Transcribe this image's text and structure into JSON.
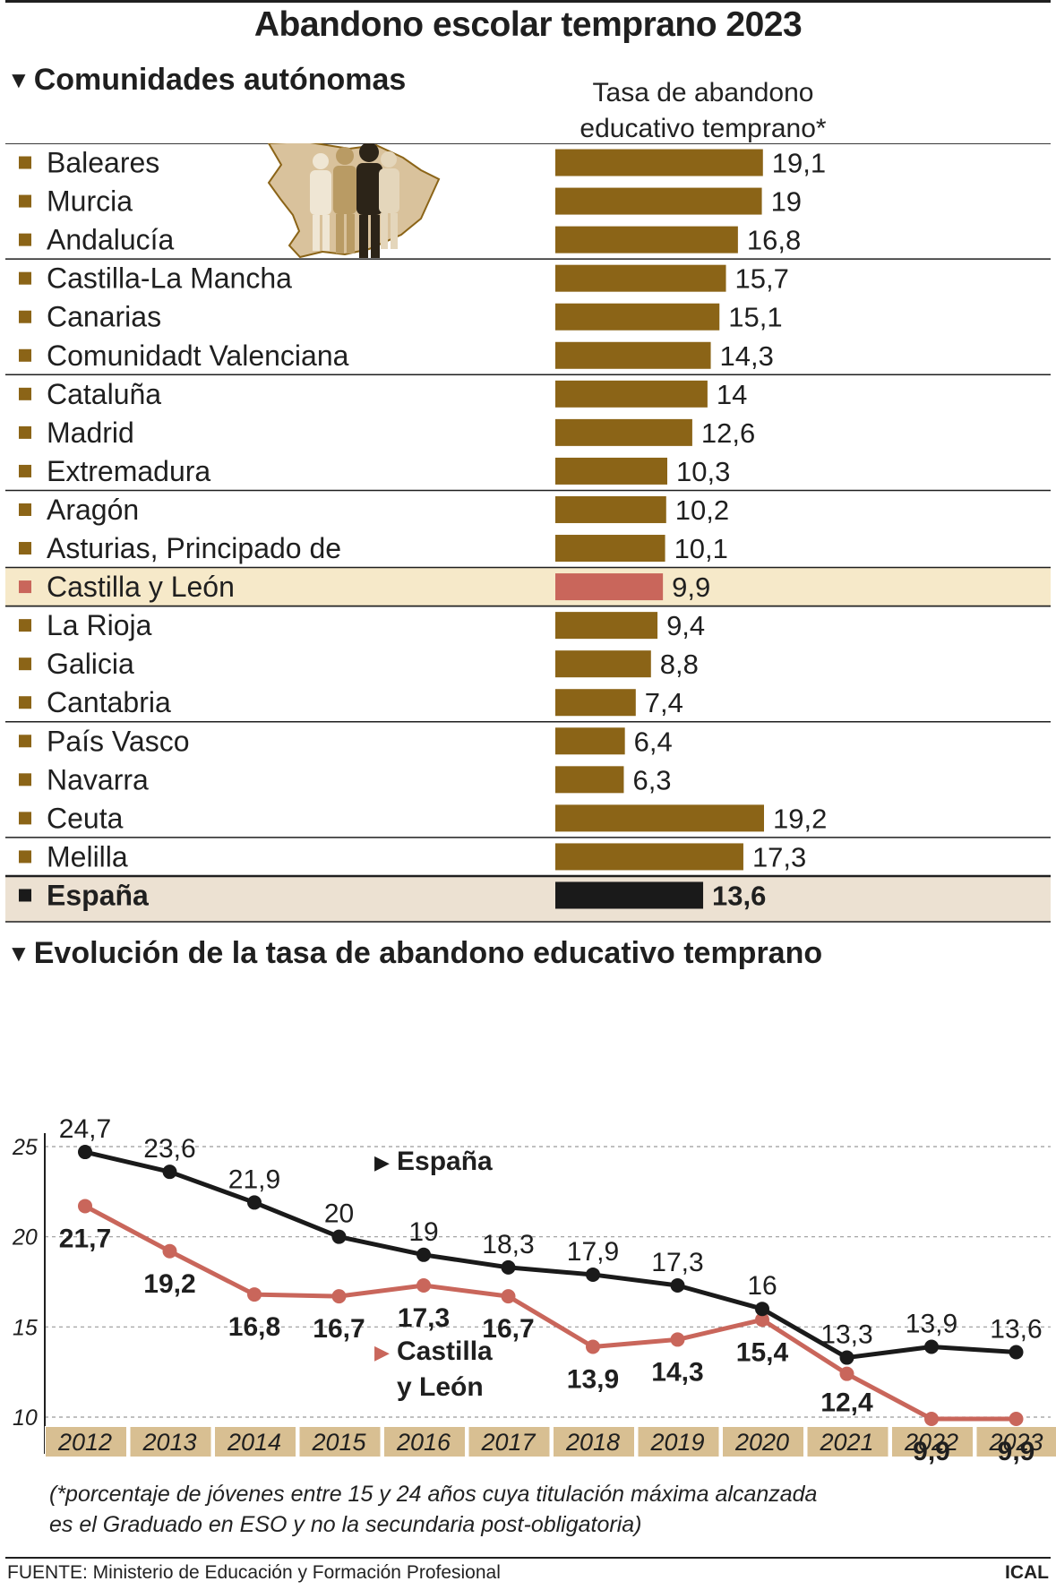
{
  "header": {
    "title": "Abandono escolar temprano 2023",
    "section1": "Comunidades autónomas",
    "rate_label_line1": "Tasa de abandono",
    "rate_label_line2": "educativo temprano*",
    "section2": "Evolución de la tasa de abandono educativo temprano"
  },
  "colors": {
    "bar": "#8b6417",
    "highlight_bar": "#c9665b",
    "total_bar": "#1a1a1a",
    "highlight_bg": "#f6e9c9",
    "total_bg": "#ece1d2",
    "axis_band": "#d8bf92",
    "spain_line": "#1a1a1a",
    "cyl_line": "#c9665b",
    "map_fill": "#d9c29c"
  },
  "chart_data": [
    {
      "type": "bar",
      "orientation": "horizontal",
      "title": "Tasa de abandono educativo temprano",
      "categories": [
        "Baleares",
        "Murcia",
        "Andalucía",
        "Castilla-La Mancha",
        "Canarias",
        "Comunidadt Valenciana",
        "Cataluña",
        "Madrid",
        "Extremadura",
        "Aragón",
        "Asturias, Principado de",
        "Castilla y León",
        "La Rioja",
        "Galicia",
        "Cantabria",
        "País Vasco",
        "Navarra",
        "Ceuta",
        "Melilla",
        "España"
      ],
      "values": [
        19.1,
        19,
        16.8,
        15.7,
        15.1,
        14.3,
        14,
        12.6,
        10.3,
        10.2,
        10.1,
        9.9,
        9.4,
        8.8,
        7.4,
        6.4,
        6.3,
        19.2,
        17.3,
        13.6
      ],
      "labels": [
        "19,1",
        "19",
        "16,8",
        "15,7",
        "15,1",
        "14,3",
        "14",
        "12,6",
        "10,3",
        "10,2",
        "10,1",
        "9,9",
        "9,4",
        "8,8",
        "7,4",
        "6,4",
        "6,3",
        "19,2",
        "17,3",
        "13,6"
      ],
      "highlight": "Castilla y León",
      "total": "España",
      "xlim": [
        0,
        19.2
      ]
    },
    {
      "type": "line",
      "title": "Evolución de la tasa de abandono educativo temprano",
      "x": [
        "2012",
        "2013",
        "2014",
        "2015",
        "2016",
        "2017",
        "2018",
        "2019",
        "2020",
        "2021",
        "2022",
        "2023"
      ],
      "yticks": [
        "25",
        "20",
        "15",
        "10"
      ],
      "ylim": [
        10,
        25
      ],
      "series": [
        {
          "name": "España",
          "values": [
            24.7,
            23.6,
            21.9,
            20,
            19,
            18.3,
            17.9,
            17.3,
            16,
            13.3,
            13.9,
            13.6
          ],
          "labels": [
            "24,7",
            "23,6",
            "21,9",
            "20",
            "19",
            "18,3",
            "17,9",
            "17,3",
            "16",
            "13,3",
            "13,9",
            "13,6"
          ]
        },
        {
          "name": "Castilla y León",
          "values": [
            21.7,
            19.2,
            16.8,
            16.7,
            17.3,
            16.7,
            13.9,
            14.3,
            15.4,
            12.4,
            9.9,
            9.9
          ],
          "labels": [
            "21,7",
            "19,2",
            "16,8",
            "16,7",
            "17,3",
            "16,7",
            "13,9",
            "14,3",
            "15,4",
            "12,4",
            "9,9",
            "9,9"
          ]
        }
      ],
      "legend": [
        "España",
        "Castilla y León"
      ]
    }
  ],
  "footer": {
    "note_line1": "(*porcentaje de jóvenes entre 15 y 24 años cuya titulación máxima alcanzada",
    "note_line2": "es el Graduado en ESO y no la secundaria post-obligatoria)",
    "source": "FUENTE: Ministerio de Educación y Formación Profesional",
    "credit": "ICAL"
  }
}
